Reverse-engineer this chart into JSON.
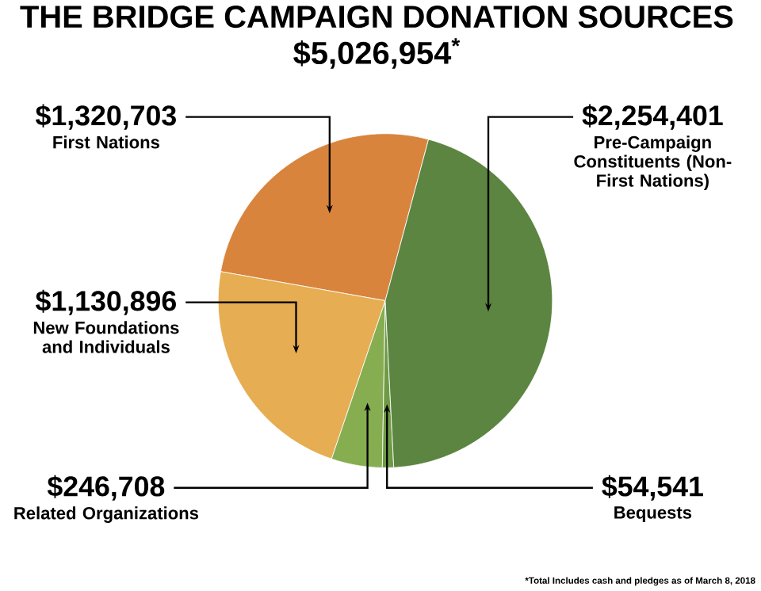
{
  "chart_data": {
    "type": "pie",
    "title": "THE BRIDGE CAMPAIGN DONATION SOURCES",
    "subtitle": "$5,026,954$^{*}$",
    "categories": [
      "First Nations",
      "New Foundations and Individuals",
      "Related Organizations",
      "Bequests",
      "Pre-Campaign Constituents (Non-First Nations)"
    ],
    "values": [
      1320703,
      1130896,
      246708,
      54541,
      2254401
    ],
    "value_labels": [
      "$1,320,703",
      "$1,130,896",
      "$246,708",
      "$54,541",
      "$2,254,401"
    ],
    "colors": [
      "#d9843c",
      "#e6ad52",
      "#86ad50",
      "#6f9a45",
      "#5b8540"
    ],
    "annotations": [
      "*Total Includes cash and pledges as of March 8, 2018"
    ]
  }
}
